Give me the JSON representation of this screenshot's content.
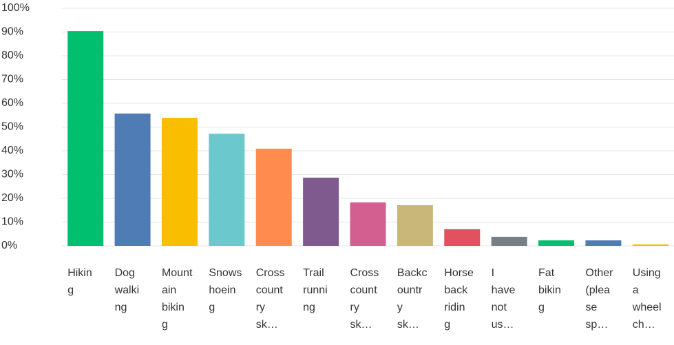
{
  "chart_data": {
    "type": "bar",
    "categories": [
      [
        "Hikin",
        "g"
      ],
      [
        "Dog",
        "walki",
        "ng"
      ],
      [
        "Mount",
        "ain",
        "bikin",
        "g"
      ],
      [
        "Snows",
        "hoein",
        "g"
      ],
      [
        "Cross",
        "count",
        "ry",
        "sk…"
      ],
      [
        "Trail",
        "runni",
        "ng"
      ],
      [
        "Cross",
        "count",
        "ry",
        "sk…"
      ],
      [
        "Backc",
        "ountr",
        "y",
        "sk…"
      ],
      [
        "Horse",
        "back",
        "ridin",
        "g"
      ],
      [
        "I",
        "have",
        "not",
        "us…"
      ],
      [
        "Fat",
        "bikin",
        "g"
      ],
      [
        "Other",
        "(plea",
        "se",
        "sp…"
      ],
      [
        "Using",
        "a",
        "wheel",
        "ch…"
      ]
    ],
    "values": [
      90.4,
      55.7,
      53.9,
      47.2,
      40.9,
      28.7,
      18.3,
      17.1,
      7.0,
      3.8,
      2.3,
      2.3,
      0.6
    ],
    "colors": [
      "#00bf6f",
      "#507cb6",
      "#f9be00",
      "#6bc8cd",
      "#ff8b4f",
      "#7f5a8f",
      "#d25f90",
      "#c9b77a",
      "#e05260",
      "#768086",
      "#00bf6f",
      "#507cb6",
      "#f9be00"
    ],
    "ylim": [
      0,
      100
    ],
    "yticks": [
      {
        "value": 0,
        "label": "0%"
      },
      {
        "value": 10,
        "label": "10%"
      },
      {
        "value": 20,
        "label": "20%"
      },
      {
        "value": 30,
        "label": "30%"
      },
      {
        "value": 40,
        "label": "40%"
      },
      {
        "value": 50,
        "label": "50%"
      },
      {
        "value": 60,
        "label": "60%"
      },
      {
        "value": 70,
        "label": "70%"
      },
      {
        "value": 80,
        "label": "80%"
      },
      {
        "value": 90,
        "label": "90%"
      },
      {
        "value": 100,
        "label": "100%"
      }
    ],
    "grid": true
  }
}
